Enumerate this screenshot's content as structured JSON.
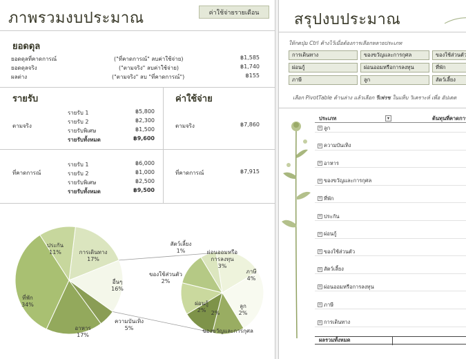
{
  "left": {
    "title": "ภาพรวมงบประมาณ",
    "monthly_button": "ค่าใช้จ่ายรายเดือน",
    "balance": {
      "heading": "ยอดดุล",
      "rows": [
        {
          "label": "ยอดดุลที่คาดการณ์",
          "formula": "(\"ที่คาดการณ์\" ลบค่าใช้จ่าย)",
          "value": "฿1,585"
        },
        {
          "label": "ยอดดุลจริง",
          "formula": "(\"ตามจริง\" ลบค่าใช้จ่าย)",
          "value": "฿1,740"
        },
        {
          "label": "ผลต่าง",
          "formula": "(\"ตามจริง\" ลบ \"ที่คาดการณ์\")",
          "value": "฿155"
        }
      ]
    },
    "income": {
      "heading": "รายรับ",
      "actual_label": "ตามจริง",
      "actual_rows": [
        {
          "label": "รายรับ 1",
          "value": "฿5,800"
        },
        {
          "label": "รายรับ 2",
          "value": "฿2,300"
        },
        {
          "label": "รายรับพิเศษ",
          "value": "฿1,500"
        },
        {
          "label": "รายรับทั้งหมด",
          "value": "฿9,600"
        }
      ],
      "projected_label": "ที่คาดการณ์",
      "projected_rows": [
        {
          "label": "รายรับ 1",
          "value": "฿6,000"
        },
        {
          "label": "รายรับ 2",
          "value": "฿1,000"
        },
        {
          "label": "รายรับพิเศษ",
          "value": "฿2,500"
        },
        {
          "label": "รายรับทั้งหมด",
          "value": "฿9,500"
        }
      ]
    },
    "expense": {
      "heading": "ค่าใช้จ่าย",
      "actual_label": "ตามจริง",
      "actual_value": "฿7,860",
      "projected_label": "ที่คาดการณ์",
      "projected_value": "฿7,915"
    },
    "pie": {
      "main_slices": [
        {
          "label": "ที่พัก",
          "pct": "34%",
          "value": 34,
          "color": "#a9c072"
        },
        {
          "label": "ประกัน",
          "pct": "11%",
          "value": 11,
          "color": "#c7d79d"
        },
        {
          "label": "การเดินทาง",
          "pct": "17%",
          "value": 17,
          "color": "#dbe5bf"
        },
        {
          "label": "อื่นๆ",
          "pct": "16%",
          "value": 16,
          "color": "#f4f7ea"
        },
        {
          "label": "ความบันเทิง",
          "pct": "5%",
          "value": 5,
          "color": "#8a9d55"
        },
        {
          "label": "อาหาร",
          "pct": "17%",
          "value": 17,
          "color": "#93a95c"
        }
      ],
      "other_slices": [
        {
          "label": "ผ่อนออมหรือการลงทุน",
          "pct": "3%",
          "value": 3,
          "color": "#eef3dc"
        },
        {
          "label": "ภาษี",
          "pct": "4%",
          "value": 4,
          "color": "#f8faf0"
        },
        {
          "label": "ลูก",
          "pct": "2%",
          "value": 2,
          "color": "#99ad62"
        },
        {
          "label": "ของขวัญและการกุศล",
          "pct": "2%",
          "value": 2,
          "color": "#7e9349"
        },
        {
          "label": "ผ่อนกู้",
          "pct": "2%",
          "value": 2,
          "color": "#cad99e"
        },
        {
          "label": "ของใช้ส่วนตัว",
          "pct": "2%",
          "value": 2,
          "color": "#b5c985"
        },
        {
          "label": "สัตว์เลี้ยง",
          "pct": "1%",
          "value": 1,
          "color": "#dce6bf"
        }
      ]
    }
  },
  "right": {
    "title": "สรุปงบประมาณ",
    "slicer_hint": "ให้กดปุ่ม Ctrl ค้างไว้เมื่อต้องการเลือกหลายประเภท",
    "slicer_buttons": [
      [
        "การเดินทาง",
        "ของขวัญและการกุศล",
        "ของใช้ส่วนตัว"
      ],
      [
        "ผ่อนกู้",
        "ผ่อนออมหรือการลงทุน",
        "ที่พัก"
      ],
      [
        "ภาษี",
        "ลูก",
        "สัตว์เลี้ยง"
      ]
    ],
    "pivot_hint_pre": "เลือก PivotTable ด้านล่าง แล้วเลือก ",
    "pivot_hint_bold": "รีเฟรช",
    "pivot_hint_post": " ในแท็บ วิเคราะห์ เพื่อ อัปเดต",
    "pivot": {
      "col_category": "ประเภท",
      "col_projected": "ต้นทุนที่คาดการ",
      "rows": [
        "ลูก",
        "ความบันเทิง",
        "อาหาร",
        "ของขวัญและการกุศล",
        "ที่พัก",
        "ประกัน",
        "ผ่อนกู้",
        "ของใช้ส่วนตัว",
        "สัตว์เลี้ยง",
        "ผ่อนออมหรือการลงทุน",
        "ภาษี",
        "การเดินทาง"
      ],
      "total_label": "ผลรวมทั้งหมด"
    }
  }
}
